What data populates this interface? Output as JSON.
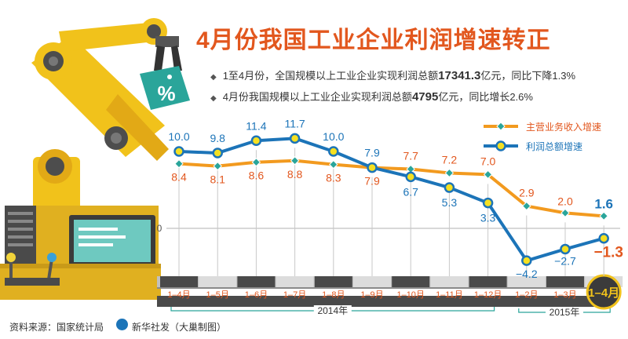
{
  "title": "4月份我国工业企业利润增速转正",
  "bullets": [
    {
      "pre": "1至4月份，全国规模以上工业企业实现利润总额",
      "bold": "17341.3",
      "post": "亿元，同比下降1.3%"
    },
    {
      "pre": "4月份我国规模以上工业企业实现利润总额",
      "bold": "4795",
      "post": "亿元，同比增长2.6%"
    }
  ],
  "badge": "%",
  "footer": {
    "source": "资料来源：国家统计局",
    "credit": "新华社发（大巢制图）"
  },
  "colors": {
    "orange": "#f29a1f",
    "blue": "#1c74b8",
    "title": "#e2571e",
    "highlight": "#e2571e"
  },
  "chart_data": {
    "type": "line",
    "categories": [
      "1–4月",
      "1–5月",
      "1–6月",
      "1–7月",
      "1–8月",
      "1–9月",
      "1–10月",
      "1–11月",
      "1–12月",
      "1–2月",
      "1–3月",
      "1–4月"
    ],
    "year_groups": [
      {
        "label": "2014年",
        "start": 0,
        "end": 8
      },
      {
        "label": "2015年",
        "start": 9,
        "end": 11
      }
    ],
    "zero_label": "0",
    "series": [
      {
        "name": "主营业务收入增速",
        "color": "#f29a1f",
        "marker": "diamond",
        "values": [
          8.4,
          8.1,
          8.6,
          8.8,
          8.3,
          7.9,
          7.7,
          7.2,
          7.0,
          2.9,
          2.0,
          1.6
        ],
        "labels": [
          "8.4",
          "8.1",
          "8.6",
          "8.8",
          "8.3",
          "7.9",
          "7.7",
          "7.2",
          "7.0",
          "2.9",
          "2.0",
          "1.6"
        ]
      },
      {
        "name": "利润总额增速",
        "color": "#1c74b8",
        "marker": "circle",
        "values": [
          10.0,
          9.8,
          11.4,
          11.7,
          10.0,
          7.9,
          6.7,
          5.3,
          3.3,
          -4.2,
          -2.7,
          -1.3
        ],
        "labels": [
          "10.0",
          "9.8",
          "11.4",
          "11.7",
          "10.0",
          "7.9",
          "6.7",
          "5.3",
          "3.3",
          "−4.2",
          "−2.7",
          "−1.3"
        ]
      }
    ],
    "ylim": [
      -5,
      13
    ],
    "grid": false,
    "legend": "top-right"
  }
}
